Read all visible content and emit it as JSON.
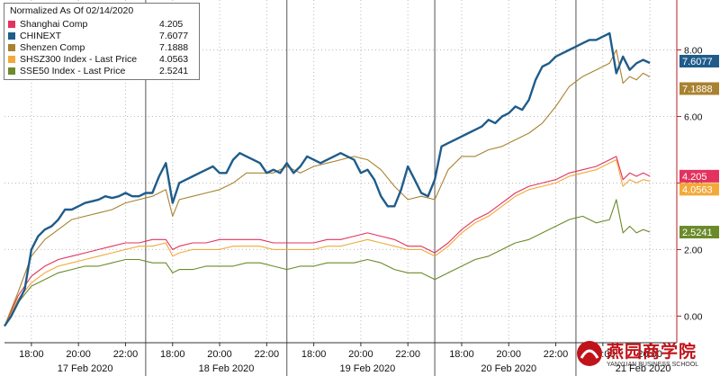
{
  "colors": {
    "shanghai": "#e3325e",
    "chinext": "#1f5c8a",
    "shenzen": "#a88230",
    "shsz300": "#f2a93a",
    "sse50": "#6b8a2a",
    "gridline": "#bbbbbb",
    "axis": "#b42020"
  },
  "watermark": {
    "title": "燕园商学院",
    "subtitle": "YANYUAN BUSINESS SCHOOL"
  },
  "chart_data": {
    "type": "line",
    "legend_title": "Normalized As Of 02/14/2020",
    "legend_position": "top-left",
    "grid": true,
    "ylim": [
      -0.8,
      9.5
    ],
    "yticks": [
      {
        "value": 0,
        "label": "0.00"
      },
      {
        "value": 2,
        "label": "2.00"
      },
      {
        "value": 4,
        "label": "4.00"
      },
      {
        "value": 6,
        "label": "6.00"
      },
      {
        "value": 8,
        "label": "8.00"
      }
    ],
    "xlim": [
      0,
      100
    ],
    "xticks": [
      {
        "x": 4,
        "label": "18:00"
      },
      {
        "x": 11,
        "label": "20:00"
      },
      {
        "x": 18,
        "label": "22:00"
      },
      {
        "x": 25,
        "label": "18:00"
      },
      {
        "x": 32,
        "label": "20:00"
      },
      {
        "x": 39,
        "label": "22:00"
      },
      {
        "x": 46,
        "label": "18:00"
      },
      {
        "x": 53,
        "label": "20:00"
      },
      {
        "x": 60,
        "label": "22:00"
      },
      {
        "x": 68,
        "label": "18:00"
      },
      {
        "x": 75,
        "label": "20:00"
      },
      {
        "x": 82,
        "label": "22:00"
      },
      {
        "x": 89,
        "label": "18:00"
      },
      {
        "x": 96,
        "label": "20:00"
      }
    ],
    "day_dividers": [
      21,
      42,
      64,
      85
    ],
    "day_labels": [
      {
        "x": 12,
        "label": "17 Feb 2020"
      },
      {
        "x": 33,
        "label": "18 Feb 2020"
      },
      {
        "x": 54,
        "label": "19 Feb 2020"
      },
      {
        "x": 75,
        "label": "20 Feb 2020"
      },
      {
        "x": 95,
        "label": "21 Feb 2020"
      }
    ],
    "series": [
      {
        "key": "chinext",
        "name": "CHINEXT",
        "value_label": "7.6077",
        "last": 7.6077,
        "width": 2.4,
        "x": [
          0,
          1,
          2,
          3,
          4,
          5,
          6,
          7,
          8,
          9,
          10,
          11,
          12,
          13,
          14,
          15,
          16,
          17,
          18,
          19,
          20,
          21,
          22,
          23,
          24,
          25,
          26,
          27,
          28,
          29,
          30,
          31,
          32,
          33,
          34,
          35,
          36,
          37,
          38,
          39,
          40,
          41,
          42,
          43,
          44,
          45,
          46,
          47,
          48,
          49,
          50,
          51,
          52,
          53,
          54,
          55,
          56,
          57,
          58,
          59,
          60,
          61,
          62,
          63,
          64,
          65,
          66,
          67,
          68,
          69,
          70,
          71,
          72,
          73,
          74,
          75,
          76,
          77,
          78,
          79,
          80,
          81,
          82,
          83,
          84,
          85,
          86,
          87,
          88,
          89,
          90,
          91,
          92,
          93,
          94,
          95,
          96
        ],
        "y": [
          -0.3,
          0.0,
          0.4,
          0.8,
          2.0,
          2.4,
          2.6,
          2.7,
          2.9,
          3.2,
          3.2,
          3.3,
          3.4,
          3.45,
          3.5,
          3.6,
          3.55,
          3.6,
          3.7,
          3.6,
          3.6,
          3.7,
          3.7,
          4.2,
          4.6,
          3.4,
          4.0,
          4.1,
          4.2,
          4.3,
          4.4,
          4.5,
          4.3,
          4.3,
          4.7,
          4.9,
          4.8,
          4.7,
          4.6,
          4.3,
          4.4,
          4.3,
          4.6,
          4.3,
          4.5,
          4.8,
          4.7,
          4.6,
          4.7,
          4.8,
          4.9,
          4.8,
          4.7,
          4.3,
          4.4,
          4.1,
          3.6,
          3.3,
          3.3,
          3.8,
          4.5,
          4.1,
          3.7,
          3.6,
          4.1,
          5.1,
          5.2,
          5.3,
          5.4,
          5.5,
          5.6,
          5.7,
          5.9,
          5.8,
          6.0,
          6.1,
          6.3,
          6.2,
          6.5,
          7.1,
          7.5,
          7.6,
          7.8,
          7.9,
          8.0,
          8.1,
          8.2,
          8.3,
          8.3,
          8.4,
          8.5,
          7.3,
          7.8,
          7.4,
          7.6,
          7.7,
          7.6077
        ]
      },
      {
        "key": "shenzen",
        "name": "Shenzen Comp",
        "value_label": "7.1888",
        "last": 7.1888,
        "width": 1.1,
        "x": [
          0,
          2,
          4,
          6,
          8,
          10,
          12,
          14,
          16,
          18,
          20,
          22,
          24,
          25,
          26,
          28,
          30,
          32,
          34,
          36,
          38,
          40,
          42,
          44,
          46,
          48,
          50,
          52,
          54,
          56,
          58,
          60,
          62,
          64,
          66,
          68,
          70,
          72,
          74,
          76,
          78,
          80,
          82,
          84,
          86,
          88,
          90,
          91,
          92,
          93,
          94,
          95,
          96
        ],
        "y": [
          -0.3,
          0.7,
          1.8,
          2.3,
          2.6,
          2.9,
          3.0,
          3.1,
          3.2,
          3.4,
          3.5,
          3.6,
          3.8,
          3.0,
          3.5,
          3.6,
          3.7,
          3.8,
          4.0,
          4.3,
          4.3,
          4.3,
          4.5,
          4.3,
          4.5,
          4.6,
          4.7,
          4.8,
          4.7,
          4.4,
          3.9,
          3.5,
          3.6,
          3.5,
          4.4,
          4.8,
          4.8,
          5.0,
          5.1,
          5.3,
          5.5,
          5.8,
          6.3,
          6.9,
          7.2,
          7.4,
          7.6,
          8.0,
          7.0,
          7.2,
          7.1,
          7.3,
          7.1888
        ]
      },
      {
        "key": "shanghai",
        "name": "Shanghai Comp",
        "value_label": "4.205",
        "last": 4.205,
        "width": 1.1,
        "x": [
          0,
          2,
          4,
          6,
          8,
          10,
          12,
          14,
          16,
          18,
          20,
          22,
          24,
          25,
          26,
          28,
          30,
          32,
          34,
          36,
          38,
          40,
          42,
          44,
          46,
          48,
          50,
          52,
          54,
          56,
          58,
          60,
          62,
          64,
          66,
          68,
          70,
          72,
          74,
          76,
          78,
          80,
          82,
          84,
          86,
          88,
          90,
          91,
          92,
          93,
          94,
          95,
          96
        ],
        "y": [
          -0.3,
          0.6,
          1.2,
          1.5,
          1.7,
          1.8,
          1.9,
          2.0,
          2.1,
          2.2,
          2.2,
          2.3,
          2.3,
          2.0,
          2.1,
          2.2,
          2.2,
          2.3,
          2.3,
          2.3,
          2.3,
          2.2,
          2.2,
          2.2,
          2.2,
          2.3,
          2.3,
          2.4,
          2.5,
          2.4,
          2.3,
          2.1,
          2.1,
          1.9,
          2.2,
          2.6,
          2.9,
          3.1,
          3.4,
          3.7,
          3.9,
          4.0,
          4.1,
          4.3,
          4.4,
          4.5,
          4.7,
          4.8,
          4.1,
          4.3,
          4.2,
          4.3,
          4.205
        ]
      },
      {
        "key": "shsz300",
        "name": "SHSZ300 Index - Last Price",
        "value_label": "4.0563",
        "last": 4.0563,
        "width": 1.1,
        "x": [
          0,
          2,
          4,
          6,
          8,
          10,
          12,
          14,
          16,
          18,
          20,
          22,
          24,
          25,
          26,
          28,
          30,
          32,
          34,
          36,
          38,
          40,
          42,
          44,
          46,
          48,
          50,
          52,
          54,
          56,
          58,
          60,
          62,
          64,
          66,
          68,
          70,
          72,
          74,
          76,
          78,
          80,
          82,
          84,
          86,
          88,
          90,
          91,
          92,
          93,
          94,
          95,
          96
        ],
        "y": [
          -0.3,
          0.5,
          1.0,
          1.3,
          1.5,
          1.6,
          1.7,
          1.8,
          1.9,
          2.0,
          2.1,
          2.1,
          2.2,
          1.8,
          1.9,
          2.0,
          2.0,
          2.0,
          2.1,
          2.1,
          2.1,
          2.0,
          2.0,
          2.0,
          2.0,
          2.1,
          2.1,
          2.2,
          2.3,
          2.2,
          2.1,
          2.0,
          2.0,
          1.8,
          2.1,
          2.5,
          2.8,
          3.0,
          3.3,
          3.6,
          3.8,
          3.9,
          4.0,
          4.2,
          4.3,
          4.4,
          4.6,
          4.7,
          3.9,
          4.1,
          4.0,
          4.1,
          4.0563
        ]
      },
      {
        "key": "sse50",
        "name": "SSE50 Index - Last Price",
        "value_label": "2.5241",
        "last": 2.5241,
        "width": 1.1,
        "x": [
          0,
          2,
          4,
          6,
          8,
          10,
          12,
          14,
          16,
          18,
          20,
          22,
          24,
          25,
          26,
          28,
          30,
          32,
          34,
          36,
          38,
          40,
          42,
          44,
          46,
          48,
          50,
          52,
          54,
          56,
          58,
          60,
          62,
          64,
          66,
          68,
          70,
          72,
          74,
          76,
          78,
          80,
          82,
          84,
          86,
          88,
          90,
          91,
          92,
          93,
          94,
          95,
          96
        ],
        "y": [
          -0.3,
          0.4,
          0.9,
          1.1,
          1.3,
          1.4,
          1.5,
          1.5,
          1.6,
          1.7,
          1.7,
          1.6,
          1.6,
          1.3,
          1.4,
          1.4,
          1.5,
          1.5,
          1.5,
          1.6,
          1.6,
          1.5,
          1.4,
          1.5,
          1.5,
          1.6,
          1.6,
          1.6,
          1.7,
          1.6,
          1.4,
          1.3,
          1.3,
          1.1,
          1.3,
          1.5,
          1.7,
          1.8,
          2.0,
          2.2,
          2.3,
          2.5,
          2.7,
          2.9,
          3.0,
          2.8,
          2.9,
          3.5,
          2.5,
          2.7,
          2.5,
          2.6,
          2.5241
        ]
      }
    ]
  }
}
